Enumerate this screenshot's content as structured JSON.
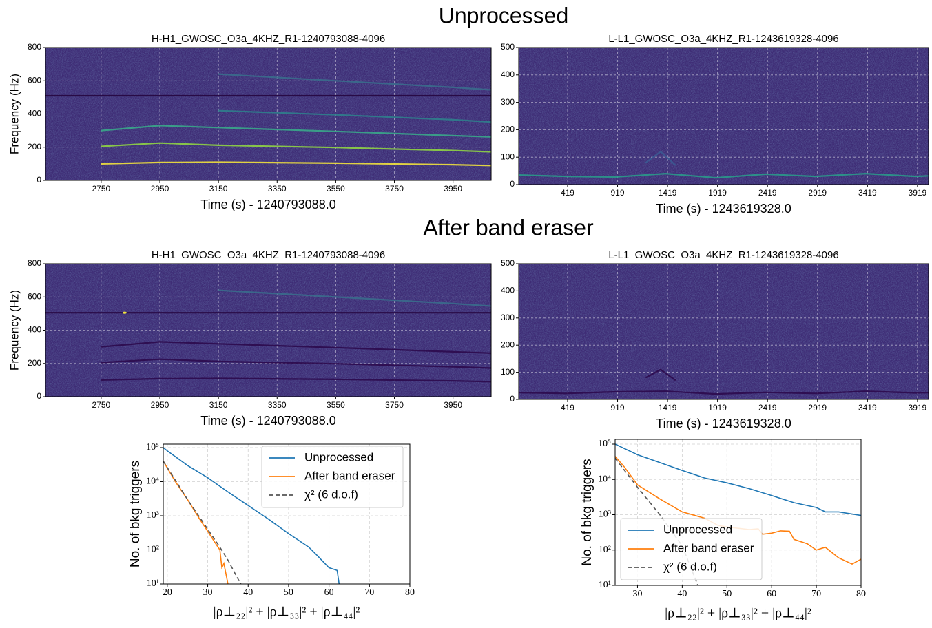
{
  "sections": [
    "Unprocessed",
    "After band eraser"
  ],
  "chart_data": [
    {
      "type": "spectrogram",
      "title": "H-H1_GWOSC_O3a_4KHZ_R1-1240793088-4096",
      "xlabel": "Time (s) - 1240793088.0",
      "ylabel": "Frequency (Hz)",
      "xlim": [
        2560,
        4080
      ],
      "xticks": [
        2750,
        2950,
        3150,
        3350,
        3550,
        3750,
        3950
      ],
      "ylim": [
        0,
        800
      ],
      "yticks": [
        0,
        200,
        400,
        600,
        800
      ],
      "grid": true,
      "background": "#3e2c75",
      "tracks": [
        {
          "color": "#26063f",
          "x": [
            2560,
            4080
          ],
          "y": [
            510,
            510
          ]
        },
        {
          "color": "#f2e33c",
          "x": [
            2750,
            2950,
            3150,
            3550,
            3950,
            4080
          ],
          "y": [
            100,
            108,
            110,
            104,
            95,
            90
          ]
        },
        {
          "color": "#8fd444",
          "x": [
            2750,
            2950,
            3150,
            3550,
            3950,
            4080
          ],
          "y": [
            205,
            225,
            212,
            198,
            180,
            172
          ]
        },
        {
          "color": "#3aa88a",
          "x": [
            2750,
            2950,
            3150,
            3550,
            3950,
            4080
          ],
          "y": [
            300,
            330,
            318,
            295,
            270,
            262
          ]
        },
        {
          "color": "#2f7f8c",
          "x": [
            3150,
            3550,
            3950,
            4080
          ],
          "y": [
            420,
            395,
            365,
            352
          ]
        },
        {
          "color": "#3a6d8c",
          "x": [
            3150,
            3550,
            3950,
            4080
          ],
          "y": [
            640,
            600,
            560,
            545
          ]
        }
      ]
    },
    {
      "type": "spectrogram",
      "title": "L-L1_GWOSC_O3a_4KHZ_R1-1243619328-4096",
      "xlabel": "Time (s) - 1243619328.0",
      "xlim": [
        -70,
        4030
      ],
      "xticks": [
        419,
        919,
        1419,
        1919,
        2419,
        2919,
        3419,
        3919
      ],
      "ylim": [
        0,
        500
      ],
      "yticks": [
        0,
        100,
        200,
        300,
        400,
        500
      ],
      "grid": true,
      "background": "#3e2c75",
      "tracks": [
        {
          "color": "#2a9a8a",
          "x": [
            -70,
            400,
            900,
            1400,
            1900,
            2400,
            2900,
            3400,
            3900,
            4030
          ],
          "y": [
            35,
            30,
            28,
            40,
            25,
            38,
            30,
            40,
            30,
            32
          ]
        },
        {
          "color": "#3b5a92",
          "x": [
            1200,
            1350,
            1500
          ],
          "y": [
            80,
            120,
            70
          ]
        }
      ]
    },
    {
      "type": "spectrogram",
      "title": "H-H1_GWOSC_O3a_4KHZ_R1-1240793088-4096",
      "xlabel": "Time (s) - 1240793088.0",
      "ylabel": "Frequency (Hz)",
      "xlim": [
        2560,
        4080
      ],
      "xticks": [
        2750,
        2950,
        3150,
        3350,
        3550,
        3750,
        3950
      ],
      "ylim": [
        0,
        800
      ],
      "yticks": [
        0,
        200,
        400,
        600,
        800
      ],
      "grid": true,
      "background": "#3e2c75",
      "tracks": [
        {
          "color": "#26063f",
          "x": [
            2560,
            4080
          ],
          "y": [
            505,
            505
          ]
        },
        {
          "color": "#2c0a4c",
          "x": [
            2750,
            2950,
            3150,
            3550,
            3950,
            4080
          ],
          "y": [
            100,
            108,
            110,
            104,
            95,
            90
          ]
        },
        {
          "color": "#2c0a4c",
          "x": [
            2750,
            2950,
            3150,
            3550,
            3950,
            4080
          ],
          "y": [
            205,
            225,
            212,
            198,
            180,
            172
          ]
        },
        {
          "color": "#2c0a4c",
          "x": [
            2750,
            2950,
            3150,
            3550,
            3950,
            4080
          ],
          "y": [
            300,
            330,
            318,
            295,
            270,
            262
          ]
        },
        {
          "color": "#3a6d8c",
          "x": [
            3150,
            3550,
            3950,
            4080
          ],
          "y": [
            640,
            600,
            560,
            545
          ]
        }
      ],
      "spots": [
        {
          "color": "#f2e33c",
          "x": [
            2830
          ],
          "y": [
            505
          ]
        }
      ]
    },
    {
      "type": "spectrogram",
      "title": "L-L1_GWOSC_O3a_4KHZ_R1-1243619328-4096",
      "xlabel": "Time (s) - 1243619328.0",
      "xlim": [
        -70,
        4030
      ],
      "xticks": [
        419,
        919,
        1419,
        1919,
        2419,
        2919,
        3419,
        3919
      ],
      "ylim": [
        0,
        500
      ],
      "yticks": [
        0,
        100,
        200,
        300,
        400,
        500
      ],
      "grid": true,
      "background": "#3e2c75",
      "tracks": [
        {
          "color": "#2c0a4c",
          "x": [
            -70,
            400,
            900,
            1400,
            1900,
            2400,
            2900,
            3400,
            3900,
            4030
          ],
          "y": [
            25,
            22,
            28,
            30,
            20,
            26,
            22,
            30,
            24,
            25
          ]
        },
        {
          "color": "#2c0a4c",
          "x": [
            1200,
            1350,
            1500
          ],
          "y": [
            80,
            110,
            70
          ]
        }
      ]
    },
    {
      "type": "line",
      "ylabel": "No. of bkg triggers",
      "xlabel": "|ρ⊥₂₂|² + |ρ⊥₃₃|² + |ρ⊥₄₄|²",
      "log_y": true,
      "grid": true,
      "legend": "upper right",
      "xlim": [
        19,
        80
      ],
      "xticks": [
        20,
        30,
        40,
        50,
        60,
        70,
        80
      ],
      "ylim": [
        10,
        126000
      ],
      "yticks": [
        {
          "value": 10,
          "label": "10¹"
        },
        {
          "value": 100,
          "label": "10²"
        },
        {
          "value": 1000,
          "label": "10³"
        },
        {
          "value": 10000,
          "label": "10⁴"
        },
        {
          "value": 100000,
          "label": "10⁵"
        }
      ],
      "series": [
        {
          "name": "Unprocessed",
          "color": "#1f77b4",
          "dash": false,
          "x": [
            19,
            20,
            25,
            30,
            35,
            40,
            45,
            50,
            55,
            57,
            60,
            62,
            62.5
          ],
          "values": [
            100000,
            80000,
            30000,
            13000,
            5000,
            2000,
            800,
            300,
            120,
            70,
            30,
            25,
            10
          ]
        },
        {
          "name": "After band eraser",
          "color": "#ff7f0e",
          "dash": false,
          "x": [
            19,
            22,
            25,
            28,
            30,
            32,
            33,
            33.5,
            34,
            35
          ],
          "values": [
            40000,
            10000,
            3000,
            800,
            350,
            150,
            100,
            30,
            40,
            10
          ]
        },
        {
          "name": "χ² (6 d.o.f)",
          "color": "#555555",
          "dash": true,
          "x": [
            19,
            22,
            25,
            28,
            30,
            33,
            35,
            37,
            38.2
          ],
          "values": [
            40000,
            11000,
            3000,
            900,
            400,
            120,
            50,
            18,
            10
          ]
        }
      ]
    },
    {
      "type": "line",
      "ylabel": "No. of bkg triggers",
      "xlabel": "|ρ⊥₂₂|² + |ρ⊥₃₃|² + |ρ⊥₄₄|²",
      "log_y": true,
      "grid": true,
      "legend": "lower left",
      "xlim": [
        25,
        80
      ],
      "xticks": [
        30,
        40,
        50,
        60,
        70,
        80
      ],
      "ylim": [
        10,
        137000
      ],
      "yticks": [
        {
          "value": 10,
          "label": "10¹"
        },
        {
          "value": 100,
          "label": "10²"
        },
        {
          "value": 1000,
          "label": "10³"
        },
        {
          "value": 10000,
          "label": "10⁴"
        },
        {
          "value": 100000,
          "label": "10⁵"
        }
      ],
      "series": [
        {
          "name": "Unprocessed",
          "color": "#1f77b4",
          "dash": false,
          "x": [
            25,
            30,
            35,
            40,
            45,
            50,
            55,
            60,
            65,
            70,
            72,
            75,
            80
          ],
          "values": [
            100000,
            50000,
            30000,
            18000,
            11000,
            8000,
            5500,
            3500,
            2200,
            1600,
            1200,
            1200,
            950
          ]
        },
        {
          "name": "After band eraser",
          "color": "#ff7f0e",
          "dash": false,
          "x": [
            25,
            27,
            30,
            35,
            40,
            45,
            48,
            50,
            55,
            57,
            58,
            60,
            62,
            64,
            65,
            68,
            70,
            72,
            75,
            78,
            80
          ],
          "values": [
            45000,
            23000,
            7000,
            2800,
            1200,
            800,
            500,
            450,
            380,
            400,
            280,
            300,
            350,
            340,
            200,
            150,
            100,
            120,
            60,
            40,
            55
          ]
        },
        {
          "name": "χ² (6 d.o.f)",
          "color": "#555555",
          "dash": true,
          "x": [
            25,
            30,
            35,
            40,
            43.5
          ],
          "values": [
            40000,
            6000,
            1000,
            130,
            10
          ]
        }
      ]
    }
  ]
}
